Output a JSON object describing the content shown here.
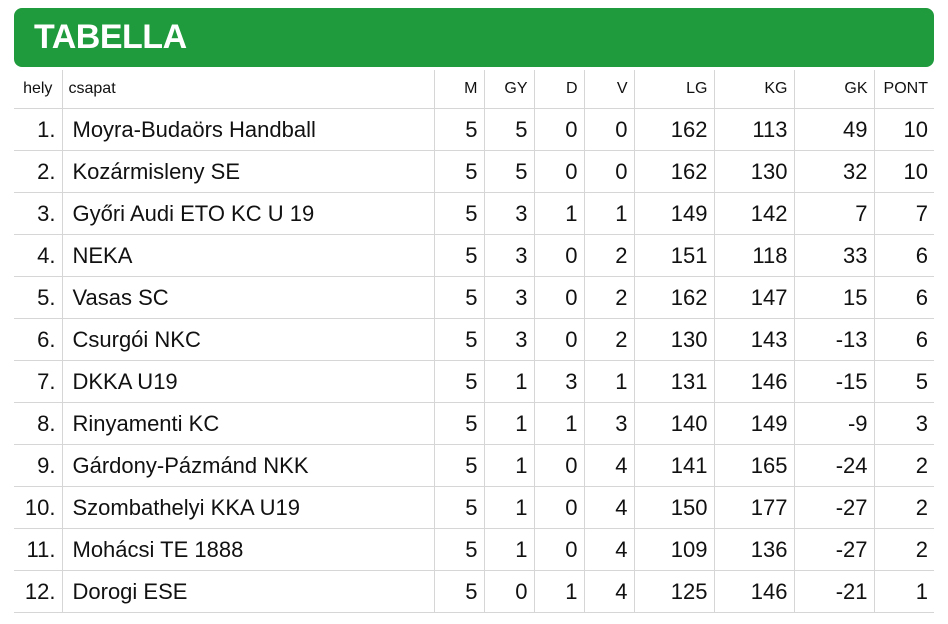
{
  "title": "TABELLA",
  "columns": {
    "rank": "hely",
    "team": "csapat",
    "m": "M",
    "gy": "GY",
    "d": "D",
    "v": "V",
    "lg": "LG",
    "kg": "KG",
    "gk": "GK",
    "pont": "PONT"
  },
  "rows": [
    {
      "rank": "1.",
      "team": "Moyra-Budaörs Handball",
      "m": "5",
      "gy": "5",
      "d": "0",
      "v": "0",
      "lg": "162",
      "kg": "113",
      "gk": "49",
      "pont": "10"
    },
    {
      "rank": "2.",
      "team": "Kozármisleny SE",
      "m": "5",
      "gy": "5",
      "d": "0",
      "v": "0",
      "lg": "162",
      "kg": "130",
      "gk": "32",
      "pont": "10"
    },
    {
      "rank": "3.",
      "team": "Győri Audi ETO KC U 19",
      "m": "5",
      "gy": "3",
      "d": "1",
      "v": "1",
      "lg": "149",
      "kg": "142",
      "gk": "7",
      "pont": "7"
    },
    {
      "rank": "4.",
      "team": "NEKA",
      "m": "5",
      "gy": "3",
      "d": "0",
      "v": "2",
      "lg": "151",
      "kg": "118",
      "gk": "33",
      "pont": "6"
    },
    {
      "rank": "5.",
      "team": "Vasas SC",
      "m": "5",
      "gy": "3",
      "d": "0",
      "v": "2",
      "lg": "162",
      "kg": "147",
      "gk": "15",
      "pont": "6"
    },
    {
      "rank": "6.",
      "team": "Csurgói NKC",
      "m": "5",
      "gy": "3",
      "d": "0",
      "v": "2",
      "lg": "130",
      "kg": "143",
      "gk": "-13",
      "pont": "6"
    },
    {
      "rank": "7.",
      "team": "DKKA U19",
      "m": "5",
      "gy": "1",
      "d": "3",
      "v": "1",
      "lg": "131",
      "kg": "146",
      "gk": "-15",
      "pont": "5"
    },
    {
      "rank": "8.",
      "team": "Rinyamenti KC",
      "m": "5",
      "gy": "1",
      "d": "1",
      "v": "3",
      "lg": "140",
      "kg": "149",
      "gk": "-9",
      "pont": "3"
    },
    {
      "rank": "9.",
      "team": "Gárdony-Pázmánd NKK",
      "m": "5",
      "gy": "1",
      "d": "0",
      "v": "4",
      "lg": "141",
      "kg": "165",
      "gk": "-24",
      "pont": "2"
    },
    {
      "rank": "10.",
      "team": "Szombathelyi KKA U19",
      "m": "5",
      "gy": "1",
      "d": "0",
      "v": "4",
      "lg": "150",
      "kg": "177",
      "gk": "-27",
      "pont": "2"
    },
    {
      "rank": "11.",
      "team": "Mohácsi TE 1888",
      "m": "5",
      "gy": "1",
      "d": "0",
      "v": "4",
      "lg": "109",
      "kg": "136",
      "gk": "-27",
      "pont": "2"
    },
    {
      "rank": "12.",
      "team": "Dorogi ESE",
      "m": "5",
      "gy": "0",
      "d": "1",
      "v": "4",
      "lg": "125",
      "kg": "146",
      "gk": "-21",
      "pont": "1"
    }
  ],
  "colors": {
    "banner": "#1f9a3c",
    "grid": "#d6d6d6"
  }
}
